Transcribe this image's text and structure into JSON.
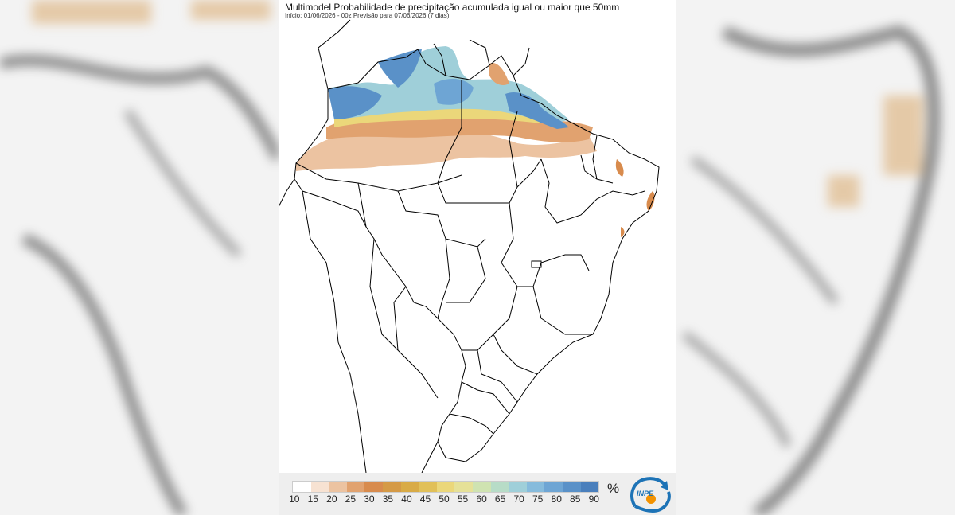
{
  "map": {
    "title": "Multimodel Probabilidade de precipitação acumulada igual ou maior que 50mm",
    "subtitle": "Início: 01/06/2026 - 00z  Previsão para 07/06/2026 (7 dias)",
    "region": "Brazil",
    "features": [
      "state-boundaries",
      "country-boundaries",
      "probability-shading"
    ]
  },
  "legend": {
    "unit": "%",
    "ticks": [
      "10",
      "15",
      "20",
      "25",
      "30",
      "35",
      "40",
      "45",
      "50",
      "55",
      "60",
      "65",
      "70",
      "75",
      "80",
      "85",
      "90"
    ],
    "colors": [
      "#ffffff",
      "#f7e2d2",
      "#ecc3a1",
      "#e1a26f",
      "#d88b4d",
      "#d59a46",
      "#d9ab46",
      "#e1c058",
      "#ebd77a",
      "#e6e198",
      "#cfe3b1",
      "#b7dcc7",
      "#9fcfd9",
      "#86bbdc",
      "#6ea5d4",
      "#5a91c8",
      "#4a7fbc"
    ]
  },
  "logo": {
    "icon": "inpe-logo",
    "text": "INPE",
    "colors": {
      "blue": "#1d73b6",
      "orange": "#f39200"
    }
  }
}
